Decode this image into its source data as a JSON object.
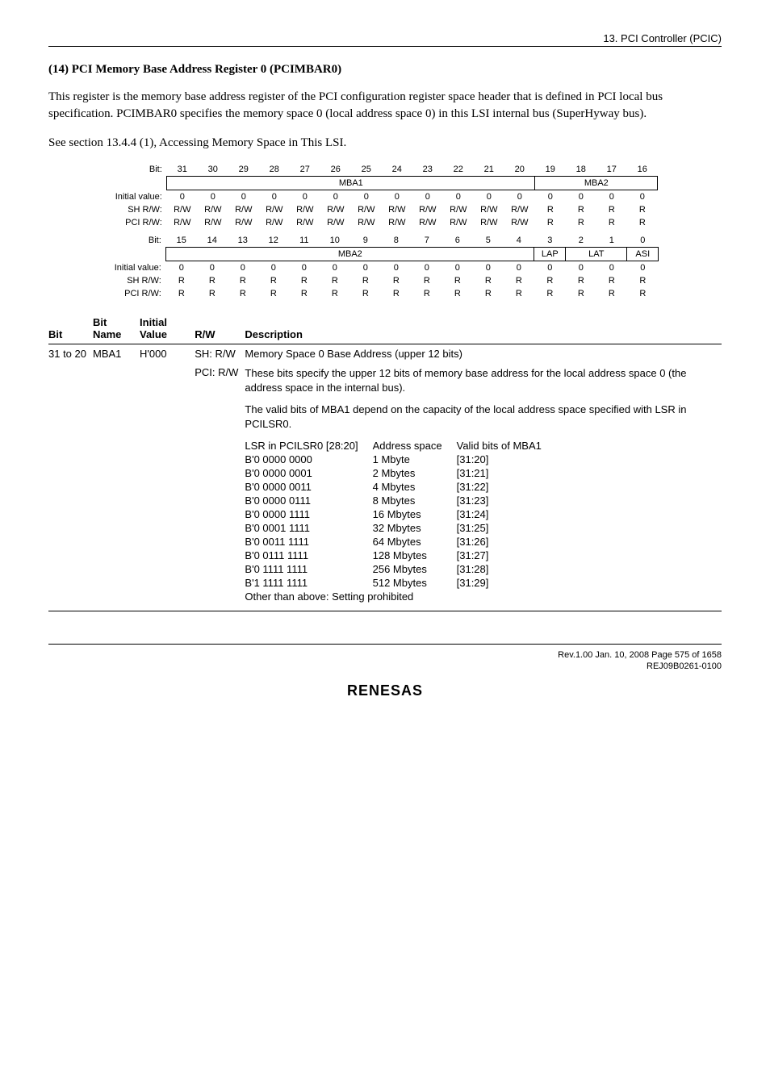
{
  "header": {
    "chapter": "13.   PCI Controller (PCIC)"
  },
  "section": {
    "title": "(14)   PCI Memory Base Address Register 0 (PCIMBAR0)",
    "para1": "This register is the memory base address register of the PCI configuration register space header that is defined in PCI local bus specification. PCIMBAR0 specifies the memory space 0 (local address space 0) in this LSI internal bus (SuperHyway bus).",
    "para2": "See section 13.4.4 (1), Accessing Memory Space in This LSI."
  },
  "reg_upper": {
    "bits": [
      "31",
      "30",
      "29",
      "28",
      "27",
      "26",
      "25",
      "24",
      "23",
      "22",
      "21",
      "20",
      "19",
      "18",
      "17",
      "16"
    ],
    "field_a": {
      "label": "MBA1",
      "span": 12
    },
    "field_b": {
      "label": "MBA2",
      "span": 4
    },
    "row_label_bit": "Bit:",
    "rows": [
      {
        "label": "Initial value:",
        "cells": [
          "0",
          "0",
          "0",
          "0",
          "0",
          "0",
          "0",
          "0",
          "0",
          "0",
          "0",
          "0",
          "0",
          "0",
          "0",
          "0"
        ]
      },
      {
        "label": "SH R/W:",
        "cells": [
          "R/W",
          "R/W",
          "R/W",
          "R/W",
          "R/W",
          "R/W",
          "R/W",
          "R/W",
          "R/W",
          "R/W",
          "R/W",
          "R/W",
          "R",
          "R",
          "R",
          "R"
        ]
      },
      {
        "label": "PCI R/W:",
        "cells": [
          "R/W",
          "R/W",
          "R/W",
          "R/W",
          "R/W",
          "R/W",
          "R/W",
          "R/W",
          "R/W",
          "R/W",
          "R/W",
          "R/W",
          "R",
          "R",
          "R",
          "R"
        ]
      }
    ]
  },
  "reg_lower": {
    "bits": [
      "15",
      "14",
      "13",
      "12",
      "11",
      "10",
      "9",
      "8",
      "7",
      "6",
      "5",
      "4",
      "3",
      "2",
      "1",
      "0"
    ],
    "fields": [
      {
        "label": "MBA2",
        "span": 12
      },
      {
        "label": "LAP",
        "span": 1
      },
      {
        "label": "LAT",
        "span": 2
      },
      {
        "label": "ASI",
        "span": 1
      }
    ],
    "rows": [
      {
        "label": "Initial value:",
        "cells": [
          "0",
          "0",
          "0",
          "0",
          "0",
          "0",
          "0",
          "0",
          "0",
          "0",
          "0",
          "0",
          "0",
          "0",
          "0",
          "0"
        ]
      },
      {
        "label": "SH R/W:",
        "cells": [
          "R",
          "R",
          "R",
          "R",
          "R",
          "R",
          "R",
          "R",
          "R",
          "R",
          "R",
          "R",
          "R",
          "R",
          "R",
          "R"
        ]
      },
      {
        "label": "PCI R/W:",
        "cells": [
          "R",
          "R",
          "R",
          "R",
          "R",
          "R",
          "R",
          "R",
          "R",
          "R",
          "R",
          "R",
          "R",
          "R",
          "R",
          "R"
        ]
      }
    ]
  },
  "desc_table": {
    "headers": {
      "bit": "Bit",
      "name": "Bit Name",
      "initial": "Initial Value",
      "rw": "R/W",
      "desc": "Description"
    },
    "row": {
      "bit": "31 to 20",
      "name": "MBA1",
      "initial": "H'000",
      "rw1": "SH: R/W",
      "rw2": "PCI: R/W",
      "desc_line1": "Memory Space 0 Base Address (upper 12 bits)",
      "desc_para1": "These bits specify the upper 12 bits of memory base address for the local address space 0 (the address space in the internal bus).",
      "desc_para2": "The valid bits of MBA1 depend on the capacity of the local address space specified with LSR in PCILSR0.",
      "lsr_header": {
        "c1": "LSR in PCILSR0 [28:20]",
        "c2": "Address space",
        "c3": "Valid bits of MBA1"
      },
      "lsr_rows": [
        {
          "c1": "B'0 0000 0000",
          "c2": "1 Mbyte",
          "c3": "[31:20]"
        },
        {
          "c1": "B'0 0000 0001",
          "c2": "2 Mbytes",
          "c3": "[31:21]"
        },
        {
          "c1": "B'0 0000 0011",
          "c2": "4 Mbytes",
          "c3": "[31:22]"
        },
        {
          "c1": "B'0 0000 0111",
          "c2": "8 Mbytes",
          "c3": "[31:23]"
        },
        {
          "c1": "B'0 0000 1111",
          "c2": "16 Mbytes",
          "c3": "[31:24]"
        },
        {
          "c1": "B'0 0001 1111",
          "c2": "32 Mbytes",
          "c3": "[31:25]"
        },
        {
          "c1": "B'0 0011 1111",
          "c2": "64 Mbytes",
          "c3": "[31:26]"
        },
        {
          "c1": "B'0 0111 1111",
          "c2": "128 Mbytes",
          "c3": "[31:27]"
        },
        {
          "c1": "B'0 1111 1111",
          "c2": "256 Mbytes",
          "c3": "[31:28]"
        },
        {
          "c1": "B'1 1111 1111",
          "c2": "512 Mbytes",
          "c3": "[31:29]"
        }
      ],
      "lsr_footer": "Other than above: Setting prohibited"
    }
  },
  "footer": {
    "line1": "Rev.1.00  Jan. 10, 2008  Page 575 of 1658",
    "line2": "REJ09B0261-0100",
    "logo": "RENESAS"
  }
}
